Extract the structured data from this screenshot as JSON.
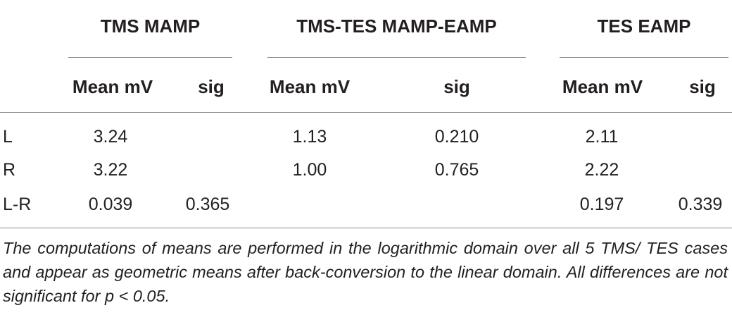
{
  "table": {
    "groups": [
      {
        "title": "TMS MAMP"
      },
      {
        "title": "TMS-TES MAMP-EAMP"
      },
      {
        "title": "TES EAMP"
      }
    ],
    "columns": [
      "Mean mV",
      "sig",
      "Mean mV",
      "sig",
      "Mean mV",
      "sig"
    ],
    "rows": [
      {
        "label": "L",
        "cells": [
          "3.24",
          "",
          "1.13",
          "0.210",
          "2.11",
          ""
        ]
      },
      {
        "label": "R",
        "cells": [
          "3.22",
          "",
          "1.00",
          "0.765",
          "2.22",
          ""
        ]
      },
      {
        "label": "L-R",
        "cells": [
          "0.039",
          "0.365",
          "",
          "",
          "0.197",
          "0.339"
        ]
      }
    ]
  },
  "footnote": "The computations of means are performed in the logarithmic domain over all 5 TMS/ TES cases and appear as geometric means after back-conversion to the linear domain. All differences are not significant for p < 0.05."
}
